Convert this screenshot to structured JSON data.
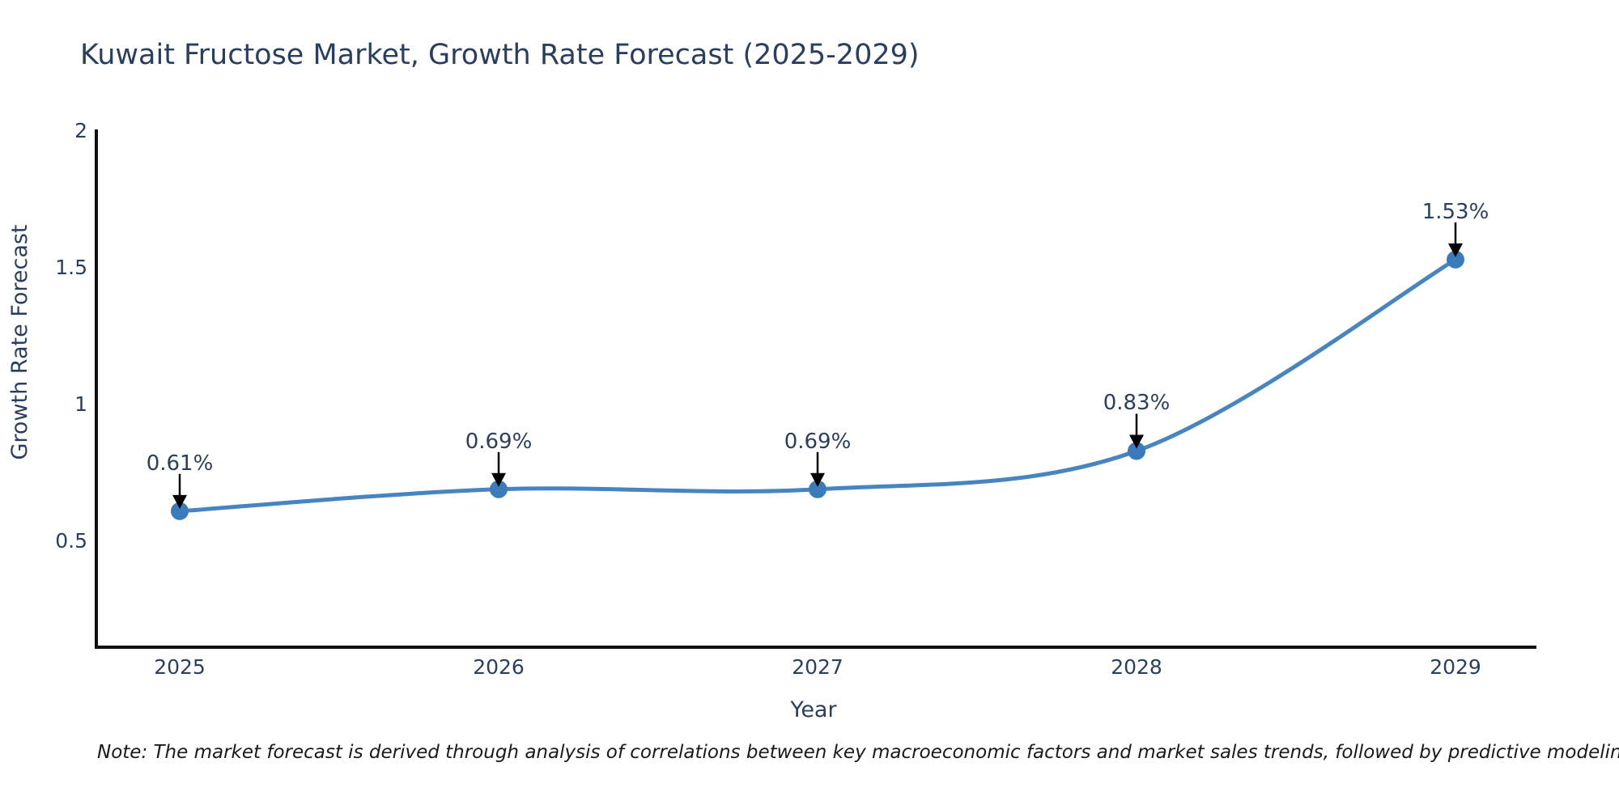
{
  "title": "Kuwait Fructose Market, Growth Rate Forecast (2025-2029)",
  "note": "Note: The market forecast is derived through analysis of correlations between key macroeconomic factors and market sales trends, followed by predictive modeling to project future sales",
  "chart_data": {
    "type": "line",
    "title": "Kuwait Fructose Market, Growth Rate Forecast (2025-2029)",
    "xlabel": "Year",
    "ylabel": "Growth Rate Forecast",
    "categories": [
      "2025",
      "2026",
      "2027",
      "2028",
      "2029"
    ],
    "values": [
      0.61,
      0.69,
      0.69,
      0.83,
      1.53
    ],
    "point_labels": [
      "0.61%",
      "0.69%",
      "0.69%",
      "0.83%",
      "1.53%"
    ],
    "yticks": [
      "2",
      "1.5",
      "1",
      "0.5"
    ],
    "ylim": [
      0.11,
      2.0
    ],
    "line_shape": "spline",
    "grid": false,
    "legend_position": "none",
    "colors": {
      "line": "#4685c1",
      "marker": "#3a7cbb",
      "axis": "#111111",
      "text": "#2a3f5f",
      "arrow": "#000000"
    }
  }
}
